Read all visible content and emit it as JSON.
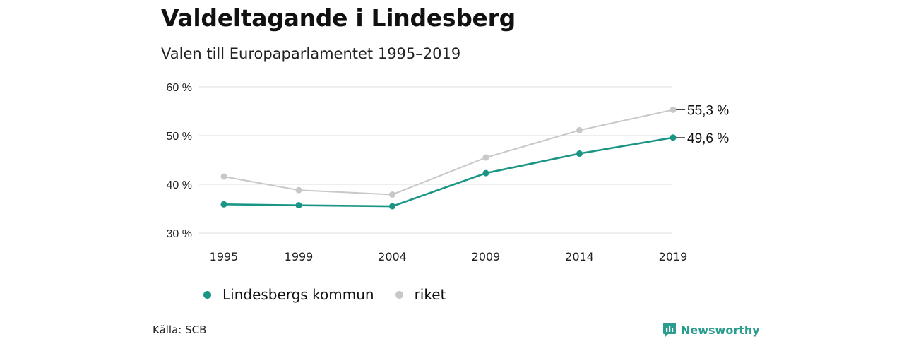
{
  "header": {
    "title": "Valdeltagande i Lindesberg",
    "subtitle": "Valen till Europaparlamentet 1995–2019"
  },
  "footer": {
    "source": "Källa: SCB",
    "brand": "Newsworthy",
    "brand_color": "#2a9d8f"
  },
  "chart_data": {
    "type": "line",
    "x": [
      "1995",
      "1999",
      "2004",
      "2009",
      "2014",
      "2019"
    ],
    "ylim": [
      30,
      60
    ],
    "yticks": [
      30,
      40,
      50,
      60
    ],
    "ytick_labels": [
      "30 %",
      "40 %",
      "50 %",
      "60 %"
    ],
    "grid": true,
    "legend_position": "bottom-left",
    "series": [
      {
        "name": "Lindesbergs kommun",
        "color": "#1a9585",
        "values": [
          35.9,
          35.7,
          35.5,
          42.3,
          46.3,
          49.6
        ],
        "end_label": "49,6 %"
      },
      {
        "name": "riket",
        "color": "#c8c8c8",
        "values": [
          41.6,
          38.8,
          37.9,
          45.5,
          51.1,
          55.3
        ],
        "end_label": "55,3 %"
      }
    ]
  }
}
